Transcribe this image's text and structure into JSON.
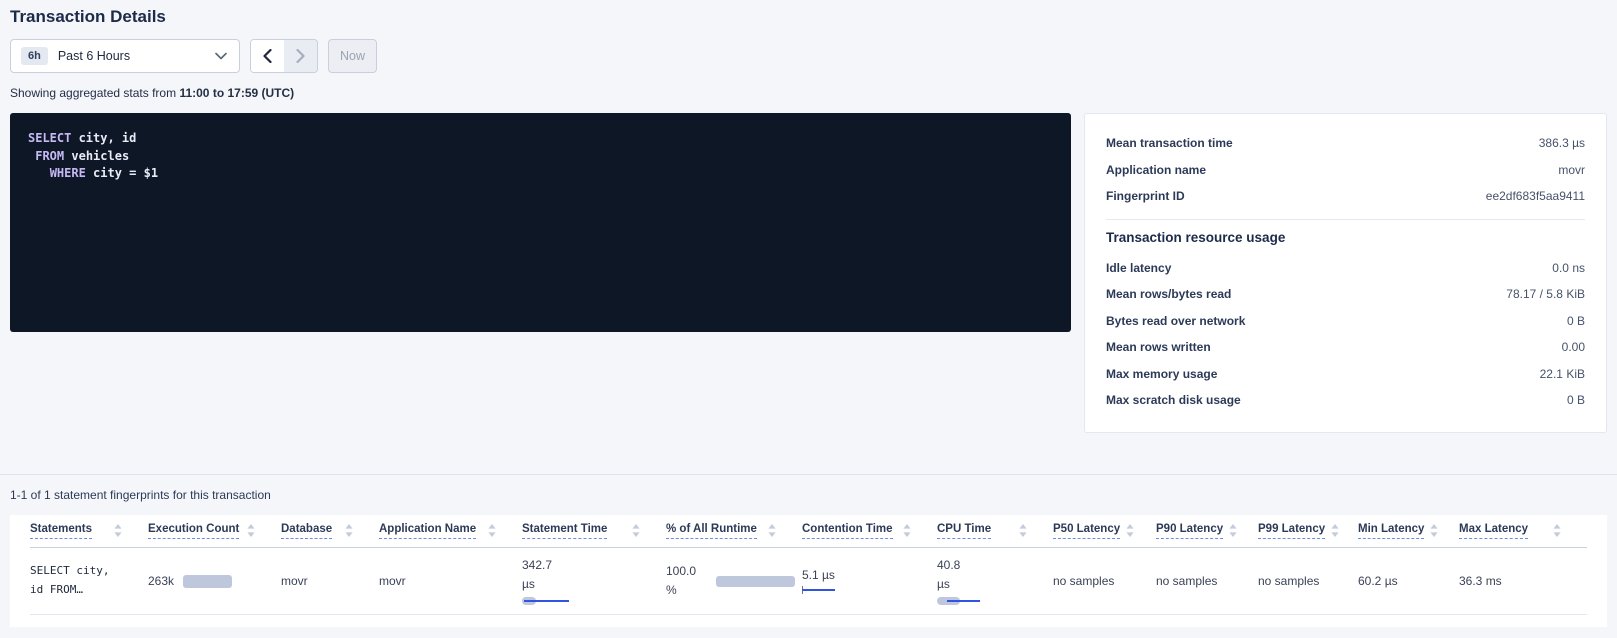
{
  "page": {
    "title": "Transaction Details"
  },
  "time_picker": {
    "preset_badge": "6h",
    "preset_label": "Past 6 Hours",
    "now_label": "Now",
    "showing_prefix": "Showing aggregated stats from",
    "showing_range": "11:00 to 17:59 (UTC)"
  },
  "sql_box": {
    "lines": [
      {
        "parts": [
          {
            "text": "SELECT",
            "keyword": true
          },
          {
            "text": " city, id",
            "keyword": false
          }
        ]
      },
      {
        "parts": [
          {
            "text": " ",
            "keyword": false
          },
          {
            "text": "FROM",
            "keyword": true
          },
          {
            "text": " vehicles",
            "keyword": false
          }
        ]
      },
      {
        "parts": [
          {
            "text": "   ",
            "keyword": false
          },
          {
            "text": "WHERE",
            "keyword": true
          },
          {
            "text": " city = $1",
            "keyword": false
          }
        ]
      }
    ]
  },
  "summary_panel": {
    "rows": [
      {
        "label": "Mean transaction time",
        "value": "386.3 µs"
      },
      {
        "label": "Application name",
        "value": "movr"
      },
      {
        "label": "Fingerprint ID",
        "value": "ee2df683f5aa9411"
      }
    ],
    "resource_heading": "Transaction resource usage",
    "resource_rows": [
      {
        "label": "Idle latency",
        "value": "0.0 ns"
      },
      {
        "label": "Mean rows/bytes read",
        "value": "78.17 / 5.8 KiB"
      },
      {
        "label": "Bytes read over network",
        "value": "0 B"
      },
      {
        "label": "Mean rows written",
        "value": "0.00"
      },
      {
        "label": "Max memory usage",
        "value": "22.1 KiB"
      },
      {
        "label": "Max scratch disk usage",
        "value": "0 B"
      }
    ]
  },
  "statements_section": {
    "count_text": "1-1 of 1 statement fingerprints for this transaction",
    "columns": [
      {
        "label": "Statements"
      },
      {
        "label": "Execution Count"
      },
      {
        "label": "Database"
      },
      {
        "label": "Application Name"
      },
      {
        "label": "Statement Time"
      },
      {
        "label": "% of All Runtime"
      },
      {
        "label": "Contention Time"
      },
      {
        "label": "CPU Time"
      },
      {
        "label": "P50 Latency"
      },
      {
        "label": "P90 Latency"
      },
      {
        "label": "P99 Latency"
      },
      {
        "label": "Min Latency"
      },
      {
        "label": "Max Latency"
      }
    ],
    "row": {
      "statements_line1": "SELECT city,",
      "statements_line2": "id FROM…",
      "execution_count": "263k",
      "database": "movr",
      "application_name": "movr",
      "statement_time": "342.7 µs",
      "pct_of_all_runtime": "100.0 %",
      "contention_time": "5.1 µs",
      "cpu_time": "40.8 µs",
      "p50_latency": "no samples",
      "p90_latency": "no samples",
      "p99_latency": "no samples",
      "min_latency": "60.2 µs",
      "max_latency": "36.3 ms"
    }
  },
  "colors": {
    "accent_blue": "#3155e0",
    "bar_gray": "#bfc7dc",
    "sql_keyword": "#c7b9f4",
    "sql_background": "#0d1726"
  }
}
